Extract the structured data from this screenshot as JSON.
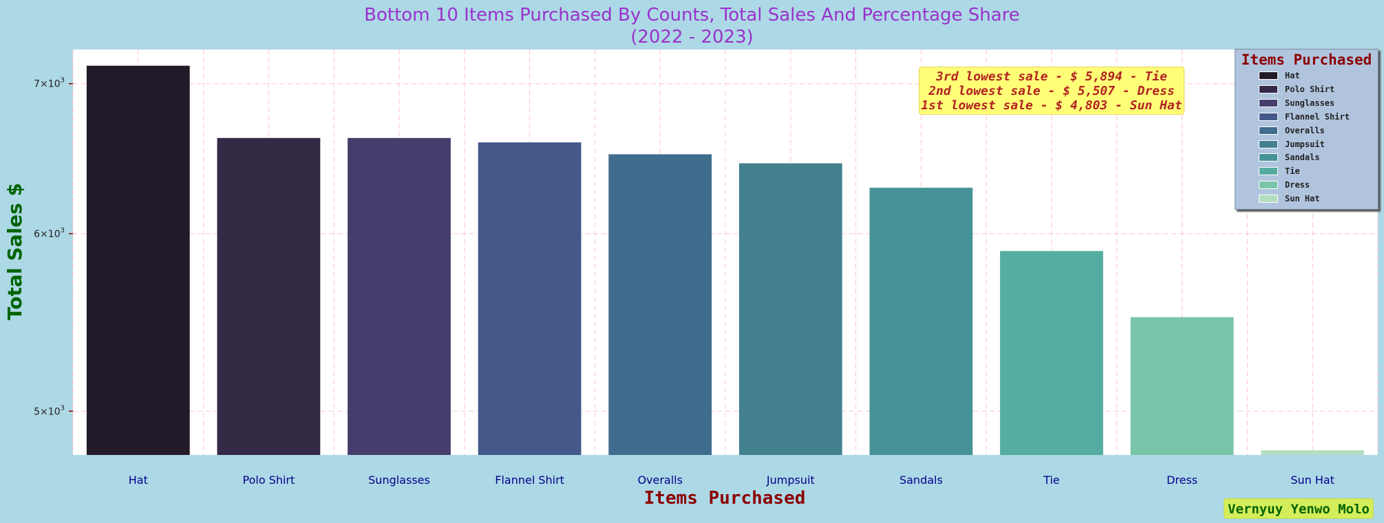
{
  "chart_data": {
    "type": "bar",
    "title": [
      "Bottom 10 Items Purchased By Counts, Total Sales And Percentage Share",
      "(2022 - 2023)"
    ],
    "xlabel": "Items Purchased",
    "ylabel": "Total Sales $",
    "yscale": "log",
    "ylim": [
      4780,
      7250
    ],
    "categories": [
      "Hat",
      "Polo Shirt",
      "Sunglasses",
      "Flannel Shirt",
      "Overalls",
      "Jumpsuit",
      "Sandals",
      "Tie",
      "Dress",
      "Sun Hat"
    ],
    "values": [
      7130,
      6620,
      6620,
      6590,
      6510,
      6450,
      6290,
      5894,
      5507,
      4803
    ],
    "colors": [
      "#221a28",
      "#342a46",
      "#453e6c",
      "#45588a",
      "#406c8e",
      "#43818f",
      "#459396",
      "#54ada0",
      "#7ac5a9",
      "#b4ddc0"
    ],
    "yticks": [
      {
        "value": 5000,
        "base": "5",
        "exp": "3"
      },
      {
        "value": 6000,
        "base": "6",
        "exp": "3"
      },
      {
        "value": 7000,
        "base": "7",
        "exp": "3"
      }
    ],
    "annotations": [
      "3rd lowest sale - $ 5,894 - Tie",
      "2nd lowest sale - $ 5,507 - Dress",
      "1st lowest sale - $ 4,803 - Sun Hat"
    ],
    "legend": {
      "title": "Items Purchased",
      "placement": "upper-right",
      "entries": [
        "Hat",
        "Polo Shirt",
        "Sunglasses",
        "Flannel Shirt",
        "Overalls",
        "Jumpsuit",
        "Sandals",
        "Tie",
        "Dress",
        "Sun Hat"
      ]
    },
    "grid": true
  },
  "signature": "Vernyuy Yenwo Molo",
  "colors": {
    "background": "#add8e6",
    "plot_area": "#ffffff",
    "title": "#9932cc",
    "xlabel": "#8b0000",
    "ylabel": "#006400",
    "tick_label": "#00008b",
    "grid": "#ffc0cb"
  }
}
